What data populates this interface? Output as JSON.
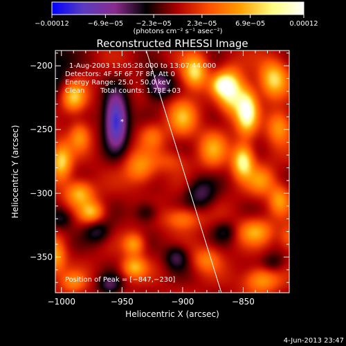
{
  "chart_data": {
    "type": "heatmap",
    "title": "Reconstructed RHESSI Image",
    "xlabel": "Heliocentric X (arcsec)",
    "ylabel": "Heliocentric Y (arcsec)",
    "xlim": [
      -1005,
      -812
    ],
    "ylim": [
      -378,
      -188
    ],
    "x_ticks": [
      -1000,
      -950,
      -900,
      -850
    ],
    "y_ticks": [
      -200,
      -250,
      -300,
      -350
    ],
    "x_tick_labels": [
      "−1000",
      "−950",
      "−900",
      "−850"
    ],
    "y_tick_labels": [
      "−200",
      "−250",
      "−300",
      "−350"
    ],
    "colorbar": {
      "range": [
        -0.00012,
        0.00012
      ],
      "ticks": [
        -0.00012,
        -6.9e-05,
        -2.3e-05,
        2.3e-05,
        6.9e-05,
        0.00012
      ],
      "tick_labels": [
        "−0.00012",
        "−6.9e−05",
        "−2.3e−05",
        "2.3e−05",
        "6.9e−05",
        "0.00012"
      ],
      "unit_label": "(photons cm⁻² s⁻¹ asec⁻²)",
      "colors": [
        "#0000ff",
        "#5a3cbf",
        "#8a2c8c",
        "#000000",
        "#b00000",
        "#ff5000",
        "#ffa000",
        "#ffff80",
        "#ffffff"
      ]
    },
    "annotations": {
      "time_range": "1-Aug-2003 13:05:28.000 to 13:07:44.000",
      "detectors": "Detectors: 4F 5F 6F 7F 8F, Att 0",
      "energy_range": "Energy Range: 25.0 - 50.0 keV",
      "clean": "Clean",
      "total_counts": "Total counts: 1.73E+03",
      "peak_label": "Position of Peak = [−847,−230]"
    },
    "peak": [
      -847,
      -230
    ],
    "marker": [
      -950,
      -244
    ],
    "limb_line": [
      [
        -930,
        -188
      ],
      [
        -868,
        -378
      ]
    ],
    "sources": [
      {
        "x": -955,
        "y": -243,
        "v": -0.00011,
        "sx": 7,
        "sy": 15
      },
      {
        "x": -920,
        "y": -215,
        "v": -6.5e-05,
        "sx": 8,
        "sy": 8
      },
      {
        "x": -1005,
        "y": -200,
        "v": -3.5e-05,
        "sx": 10,
        "sy": 20
      },
      {
        "x": -860,
        "y": -220,
        "v": 9.5e-05,
        "sx": 7,
        "sy": 12
      },
      {
        "x": -847,
        "y": -235,
        "v": 0.000115,
        "sx": 6,
        "sy": 12
      },
      {
        "x": -868,
        "y": -215,
        "v": 7e-05,
        "sx": 6,
        "sy": 6
      },
      {
        "x": -825,
        "y": -210,
        "v": 8e-05,
        "sx": 8,
        "sy": 10
      },
      {
        "x": -820,
        "y": -248,
        "v": 6e-05,
        "sx": 7,
        "sy": 9
      },
      {
        "x": -890,
        "y": -205,
        "v": 8.5e-05,
        "sx": 7,
        "sy": 9
      },
      {
        "x": -900,
        "y": -240,
        "v": 6e-05,
        "sx": 8,
        "sy": 10
      },
      {
        "x": -875,
        "y": -265,
        "v": 5.5e-05,
        "sx": 8,
        "sy": 10
      },
      {
        "x": -990,
        "y": -225,
        "v": 7.5e-05,
        "sx": 7,
        "sy": 8
      },
      {
        "x": -985,
        "y": -255,
        "v": 5e-05,
        "sx": 6,
        "sy": 8
      },
      {
        "x": -1000,
        "y": -275,
        "v": 8e-05,
        "sx": 6,
        "sy": 10
      },
      {
        "x": -985,
        "y": -300,
        "v": 7e-05,
        "sx": 8,
        "sy": 7
      },
      {
        "x": -975,
        "y": -315,
        "v": 6.5e-05,
        "sx": 7,
        "sy": 6
      },
      {
        "x": -935,
        "y": -280,
        "v": 5.5e-05,
        "sx": 9,
        "sy": 9
      },
      {
        "x": -925,
        "y": -255,
        "v": 4e-05,
        "sx": 7,
        "sy": 7
      },
      {
        "x": -910,
        "y": -275,
        "v": 2.5e-05,
        "sx": 10,
        "sy": 6
      },
      {
        "x": -850,
        "y": -275,
        "v": 0.0001,
        "sx": 6,
        "sy": 9
      },
      {
        "x": -835,
        "y": -290,
        "v": 5e-05,
        "sx": 8,
        "sy": 8
      },
      {
        "x": -820,
        "y": -305,
        "v": 5.5e-05,
        "sx": 6,
        "sy": 8
      },
      {
        "x": -900,
        "y": -320,
        "v": 5e-05,
        "sx": 10,
        "sy": 6
      },
      {
        "x": -840,
        "y": -330,
        "v": 6e-05,
        "sx": 10,
        "sy": 7
      },
      {
        "x": -812,
        "y": -335,
        "v": 4e-05,
        "sx": 6,
        "sy": 7
      },
      {
        "x": -940,
        "y": -340,
        "v": 6e-05,
        "sx": 6,
        "sy": 6
      },
      {
        "x": -940,
        "y": -358,
        "v": 6.5e-05,
        "sx": 7,
        "sy": 6
      },
      {
        "x": -1005,
        "y": -350,
        "v": 6e-05,
        "sx": 6,
        "sy": 10
      },
      {
        "x": -880,
        "y": -352,
        "v": 4.5e-05,
        "sx": 8,
        "sy": 7
      },
      {
        "x": -835,
        "y": -368,
        "v": 6e-05,
        "sx": 10,
        "sy": 7
      },
      {
        "x": -990,
        "y": -370,
        "v": 4.5e-05,
        "sx": 7,
        "sy": 6
      },
      {
        "x": -885,
        "y": -300,
        "v": -4.5e-05,
        "sx": 9,
        "sy": 9
      },
      {
        "x": -970,
        "y": -330,
        "v": -4e-05,
        "sx": 8,
        "sy": 7
      },
      {
        "x": -960,
        "y": -372,
        "v": -4.5e-05,
        "sx": 7,
        "sy": 6
      },
      {
        "x": -1000,
        "y": -320,
        "v": -3.5e-05,
        "sx": 7,
        "sy": 6
      },
      {
        "x": -865,
        "y": -330,
        "v": -3e-05,
        "sx": 7,
        "sy": 6
      },
      {
        "x": -905,
        "y": -350,
        "v": -4.5e-05,
        "sx": 7,
        "sy": 7
      },
      {
        "x": -930,
        "y": -315,
        "v": -3.5e-05,
        "sx": 7,
        "sy": 6
      },
      {
        "x": -825,
        "y": -355,
        "v": -3e-05,
        "sx": 7,
        "sy": 6
      }
    ]
  },
  "footer": {
    "date": "4-Jun-2013 23:47"
  }
}
